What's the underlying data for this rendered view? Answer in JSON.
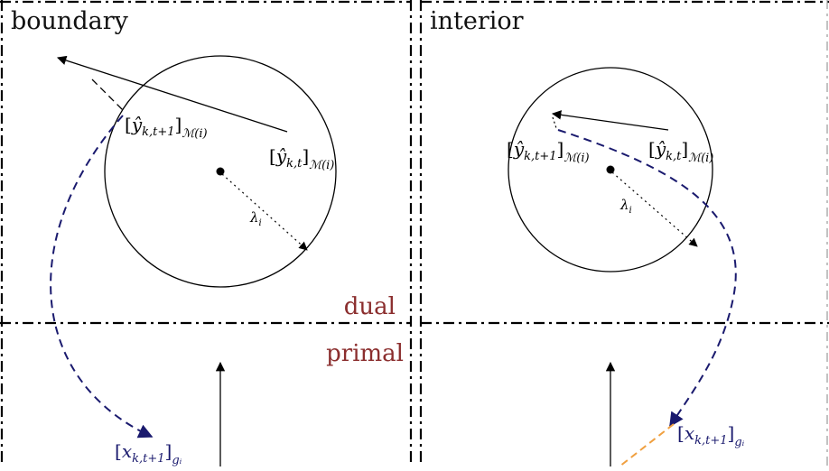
{
  "panels": {
    "left_title": "boundary",
    "right_title": "interior"
  },
  "regions": {
    "dual": "dual",
    "primal": "primal"
  },
  "math": {
    "y_hat": "ŷ",
    "k_t1": "k,t+1",
    "k_t": "k,t",
    "M_i": "ℳ(i)",
    "x": "x",
    "g_i": "gᵢ",
    "lambda": "λ",
    "lambda_sub": "i"
  },
  "colors": {
    "region_label": "#8b2e2e",
    "path_dashed": "#1a1a6e",
    "path_orange": "#f0a040",
    "math_primal": "#1a1a6e"
  }
}
